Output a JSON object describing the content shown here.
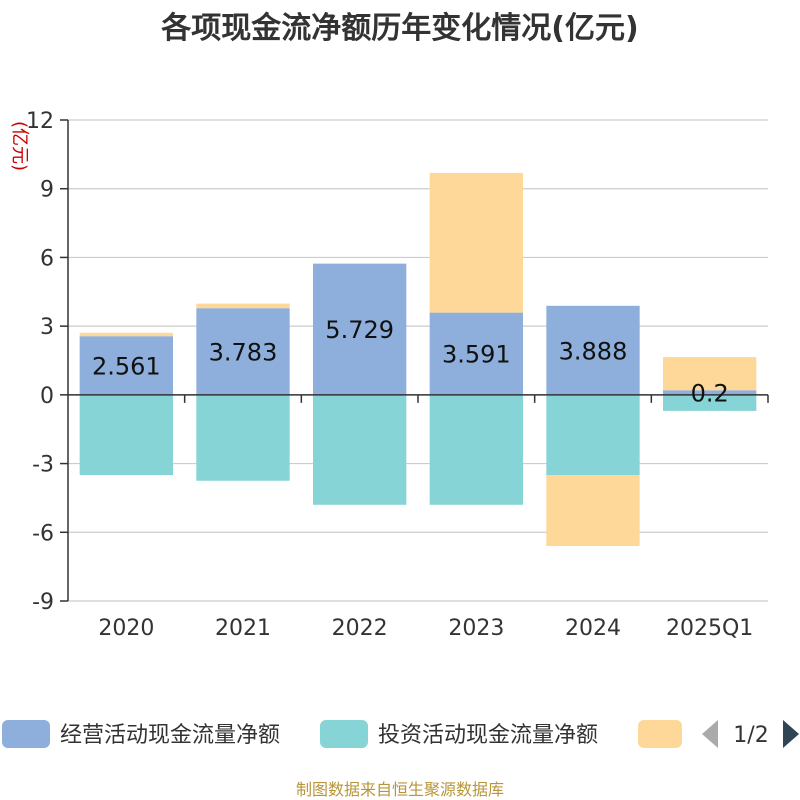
{
  "chart_data": {
    "type": "bar",
    "stacked": true,
    "title": "各项现金流净额历年变化情况(亿元)",
    "ylabel": "(亿元)",
    "xlabel": "",
    "categories": [
      "2020",
      "2021",
      "2022",
      "2023",
      "2024",
      "2025Q1"
    ],
    "ylim": [
      -9,
      12
    ],
    "yticks": [
      12,
      9,
      6,
      3,
      0,
      -3,
      -6,
      -9
    ],
    "grid": true,
    "series": [
      {
        "name": "经营活动现金流量净额",
        "color": "#8eaedb",
        "values": [
          2.561,
          3.783,
          5.729,
          3.591,
          3.888,
          0.2
        ]
      },
      {
        "name": "投资活动现金流量净额",
        "color": "#86d4d6",
        "values": [
          -3.5,
          -3.75,
          -4.8,
          -4.8,
          -3.5,
          -0.7
        ]
      },
      {
        "name": "",
        "color": "#fdd899",
        "values": [
          0.15,
          0.2,
          0.0,
          6.1,
          -3.1,
          1.45
        ]
      }
    ],
    "data_labels": [
      "2.561",
      "3.783",
      "5.729",
      "3.591",
      "3.888",
      "0.2"
    ],
    "legend": {
      "position": "bottom",
      "page": "1/2"
    }
  },
  "footer": "制图数据来自恒生聚源数据库"
}
